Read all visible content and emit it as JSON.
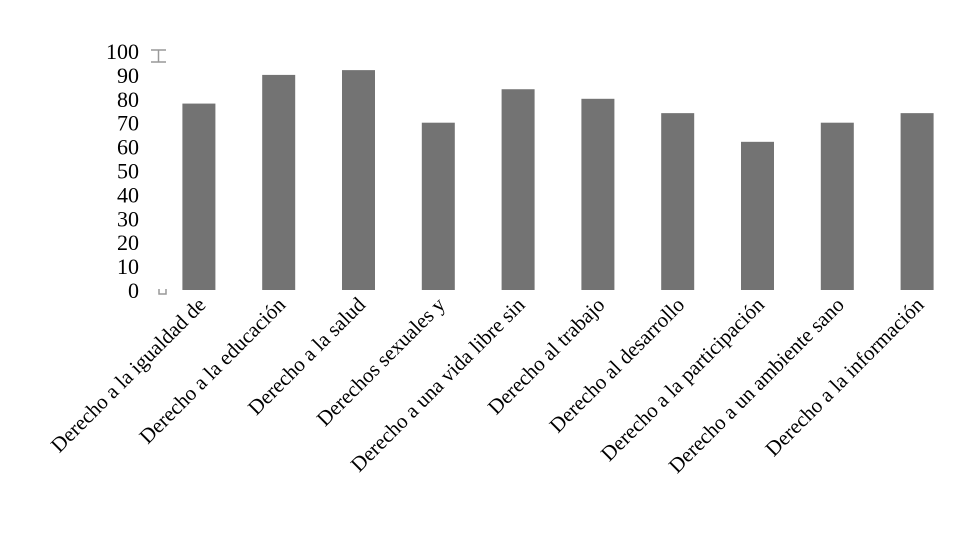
{
  "chart_data": {
    "type": "bar",
    "title": "",
    "xlabel": "",
    "ylabel": "",
    "ylim": [
      0,
      100
    ],
    "yticks": [
      0,
      10,
      20,
      30,
      40,
      50,
      60,
      70,
      80,
      90,
      100
    ],
    "grid": false,
    "legend": "none",
    "bar_color": "#737373",
    "categories": [
      "Derecho a la igualdad de",
      "Derecho a la educación",
      "Derecho a la salud",
      "Derechos sexuales y",
      "Derecho a una vida libre sin",
      "Derecho al trabajo",
      "Derecho al desarrollo",
      "Derecho a la participación",
      "Derecho a un ambiente sano",
      "Derecho a la información"
    ],
    "values": [
      78,
      90,
      92,
      70,
      84,
      80,
      74,
      62,
      70,
      74
    ]
  }
}
